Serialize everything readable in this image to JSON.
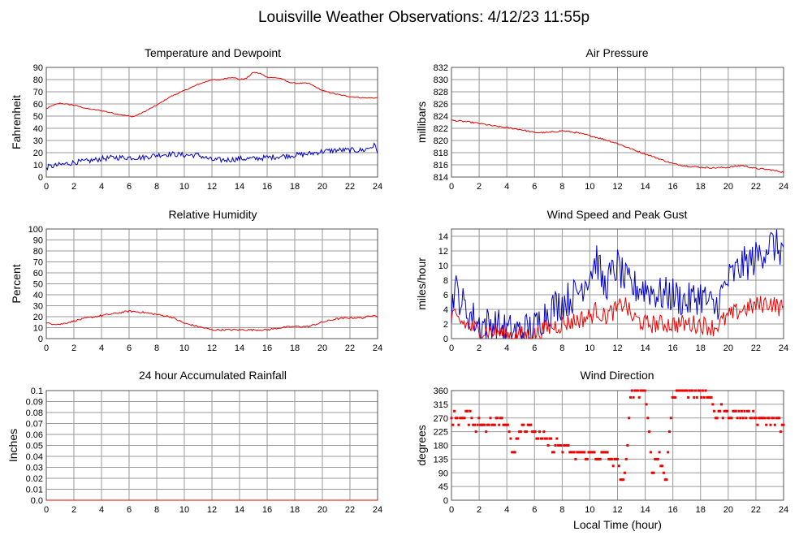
{
  "page_title": "Louisville Weather Observations: 4/12/23 11:55p",
  "colors": {
    "red": "#ee0000",
    "blue": "#0000cc",
    "grid": "#9a9a9a"
  },
  "chart_data": [
    {
      "id": "temp",
      "type": "line",
      "title": "Temperature and Dewpoint",
      "ylabel": "Fahrenheit",
      "xlabel": "",
      "xlim": [
        0,
        24
      ],
      "ylim": [
        0,
        90
      ],
      "x_ticks": [
        0,
        2,
        4,
        6,
        8,
        10,
        12,
        14,
        16,
        18,
        20,
        22,
        24
      ],
      "y_ticks": [
        "0",
        "10",
        "20",
        "30",
        "40",
        "50",
        "60",
        "70",
        "80",
        "90"
      ],
      "series": [
        {
          "color": "#ee0000",
          "noise": 0.4,
          "points": [
            [
              0,
              56
            ],
            [
              0.5,
              59
            ],
            [
              1,
              60.5
            ],
            [
              2,
              59
            ],
            [
              3,
              56
            ],
            [
              4,
              54.5
            ],
            [
              5,
              52
            ],
            [
              6,
              50
            ],
            [
              6.3,
              49.5
            ],
            [
              7,
              53
            ],
            [
              8,
              59
            ],
            [
              9,
              66
            ],
            [
              10,
              71
            ],
            [
              11,
              76
            ],
            [
              12,
              80
            ],
            [
              12.5,
              79.5
            ],
            [
              13,
              81
            ],
            [
              13.5,
              82
            ],
            [
              14,
              80
            ],
            [
              14.5,
              81
            ],
            [
              15,
              86
            ],
            [
              15.5,
              85
            ],
            [
              16,
              82
            ],
            [
              17,
              81
            ],
            [
              17.5,
              78
            ],
            [
              18,
              77
            ],
            [
              19,
              77
            ],
            [
              20,
              71
            ],
            [
              21,
              68
            ],
            [
              22,
              66
            ],
            [
              23,
              65
            ],
            [
              24,
              65
            ]
          ]
        },
        {
          "color": "#0000cc",
          "noise": 2.2,
          "points": [
            [
              0,
              8
            ],
            [
              1,
              10
            ],
            [
              2,
              12
            ],
            [
              3,
              13
            ],
            [
              4,
              15
            ],
            [
              5,
              16
            ],
            [
              6,
              16
            ],
            [
              7,
              16
            ],
            [
              8,
              18
            ],
            [
              9,
              19
            ],
            [
              10,
              18
            ],
            [
              11,
              18
            ],
            [
              12,
              14
            ],
            [
              13,
              14
            ],
            [
              14,
              15
            ],
            [
              15,
              15
            ],
            [
              16,
              16
            ],
            [
              17,
              17
            ],
            [
              18,
              18
            ],
            [
              19,
              19
            ],
            [
              20,
              21
            ],
            [
              21,
              22
            ],
            [
              22,
              22
            ],
            [
              23,
              22
            ],
            [
              23.8,
              26
            ],
            [
              24,
              21
            ]
          ]
        }
      ]
    },
    {
      "id": "pressure",
      "type": "line",
      "title": "Air Pressure",
      "ylabel": "millibars",
      "xlabel": "",
      "xlim": [
        0,
        24
      ],
      "ylim": [
        814,
        832
      ],
      "x_ticks": [
        0,
        2,
        4,
        6,
        8,
        10,
        12,
        14,
        16,
        18,
        20,
        22,
        24
      ],
      "y_ticks": [
        "814",
        "816",
        "818",
        "820",
        "822",
        "824",
        "826",
        "828",
        "830",
        "832"
      ],
      "series": [
        {
          "color": "#ee0000",
          "noise": 0.12,
          "points": [
            [
              0,
              823.3
            ],
            [
              1,
              823.1
            ],
            [
              2,
              822.8
            ],
            [
              3,
              822.4
            ],
            [
              4,
              822.1
            ],
            [
              5,
              821.8
            ],
            [
              6,
              821.3
            ],
            [
              7,
              821.3
            ],
            [
              8,
              821.6
            ],
            [
              9,
              821.3
            ],
            [
              10,
              820.8
            ],
            [
              11,
              820.2
            ],
            [
              12,
              819.5
            ],
            [
              13,
              818.6
            ],
            [
              14,
              817.8
            ],
            [
              15,
              817.0
            ],
            [
              16,
              816.2
            ],
            [
              17,
              815.8
            ],
            [
              18,
              815.6
            ],
            [
              19,
              815.5
            ],
            [
              20,
              815.6
            ],
            [
              21,
              815.9
            ],
            [
              22,
              815.4
            ],
            [
              23,
              815.2
            ],
            [
              24,
              814.8
            ]
          ]
        }
      ]
    },
    {
      "id": "humidity",
      "type": "line",
      "title": "Relative Humidity",
      "ylabel": "Percent",
      "xlabel": "",
      "xlim": [
        0,
        24
      ],
      "ylim": [
        0,
        100
      ],
      "x_ticks": [
        0,
        2,
        4,
        6,
        8,
        10,
        12,
        14,
        16,
        18,
        20,
        22,
        24
      ],
      "y_ticks": [
        "0",
        "10",
        "20",
        "30",
        "40",
        "50",
        "60",
        "70",
        "80",
        "90",
        "100"
      ],
      "series": [
        {
          "color": "#ee0000",
          "noise": 0.8,
          "points": [
            [
              0,
              14
            ],
            [
              1,
              13
            ],
            [
              2,
              16
            ],
            [
              3,
              19
            ],
            [
              4,
              21
            ],
            [
              5,
              23
            ],
            [
              6,
              25
            ],
            [
              7,
              24
            ],
            [
              8,
              22
            ],
            [
              9,
              20
            ],
            [
              10,
              14
            ],
            [
              11,
              11
            ],
            [
              12,
              8
            ],
            [
              13,
              8
            ],
            [
              14,
              8
            ],
            [
              15,
              8
            ],
            [
              16,
              8
            ],
            [
              17,
              10
            ],
            [
              18,
              11
            ],
            [
              19,
              11
            ],
            [
              20,
              15
            ],
            [
              21,
              18
            ],
            [
              22,
              19
            ],
            [
              23,
              19
            ],
            [
              23.8,
              22
            ],
            [
              24,
              19
            ]
          ]
        }
      ]
    },
    {
      "id": "wind",
      "type": "line",
      "title": "Wind Speed and Peak Gust",
      "ylabel": "miles/hour",
      "xlabel": "",
      "xlim": [
        0,
        24
      ],
      "ylim": [
        0,
        15
      ],
      "x_ticks": [
        0,
        2,
        4,
        6,
        8,
        10,
        12,
        14,
        16,
        18,
        20,
        22,
        24
      ],
      "y_ticks": [
        "0",
        "2",
        "4",
        "6",
        "8",
        "10",
        "12",
        "14"
      ],
      "series": [
        {
          "color": "#0000cc",
          "noise": 2.5,
          "points": [
            [
              0,
              4
            ],
            [
              0.2,
              7
            ],
            [
              0.5,
              6
            ],
            [
              1,
              4
            ],
            [
              2,
              2
            ],
            [
              3,
              2
            ],
            [
              4,
              1
            ],
            [
              5,
              1
            ],
            [
              6,
              1.5
            ],
            [
              7,
              4
            ],
            [
              8,
              5
            ],
            [
              9,
              6
            ],
            [
              10,
              9
            ],
            [
              10.5,
              11
            ],
            [
              11,
              7
            ],
            [
              12,
              10
            ],
            [
              12.5,
              8
            ],
            [
              13,
              7
            ],
            [
              14,
              7
            ],
            [
              15,
              6
            ],
            [
              16,
              6
            ],
            [
              17,
              5
            ],
            [
              18,
              6
            ],
            [
              19,
              4
            ],
            [
              20,
              8
            ],
            [
              21,
              10
            ],
            [
              22,
              11
            ],
            [
              23,
              13
            ],
            [
              24,
              12
            ]
          ]
        },
        {
          "color": "#ee0000",
          "noise": 1.3,
          "points": [
            [
              0,
              3
            ],
            [
              1,
              2
            ],
            [
              2,
              1
            ],
            [
              3,
              1
            ],
            [
              4,
              0.5
            ],
            [
              5,
              0.5
            ],
            [
              6,
              0.5
            ],
            [
              7,
              1.5
            ],
            [
              8,
              2
            ],
            [
              9,
              2.5
            ],
            [
              10,
              3
            ],
            [
              10.5,
              4
            ],
            [
              11,
              3
            ],
            [
              12,
              4
            ],
            [
              12.5,
              5
            ],
            [
              13,
              3
            ],
            [
              14,
              2
            ],
            [
              15,
              2
            ],
            [
              16,
              2
            ],
            [
              17,
              2
            ],
            [
              18,
              2
            ],
            [
              19,
              1.5
            ],
            [
              20,
              3
            ],
            [
              21,
              4
            ],
            [
              22,
              4.5
            ],
            [
              23,
              5
            ],
            [
              24,
              4
            ]
          ]
        }
      ]
    },
    {
      "id": "rain",
      "type": "line",
      "title": "24 hour Accumulated Rainfall",
      "ylabel": "Inches",
      "xlabel": "",
      "xlim": [
        0,
        24
      ],
      "ylim": [
        0,
        0.1
      ],
      "x_ticks": [
        0,
        2,
        4,
        6,
        8,
        10,
        12,
        14,
        16,
        18,
        20,
        22,
        24
      ],
      "y_ticks": [
        "0.0",
        "0.01",
        "0.02",
        "0.03",
        "0.04",
        "0.05",
        "0.06",
        "0.07",
        "0.08",
        "0.09",
        "0.1"
      ],
      "series": [
        {
          "color": "#ee0000",
          "noise": 0,
          "points": [
            [
              0,
              0
            ],
            [
              24,
              0
            ]
          ]
        }
      ]
    },
    {
      "id": "direction",
      "type": "scatter",
      "title": "Wind Direction",
      "ylabel": "degrees",
      "xlabel": "Local Time (hour)",
      "xlim": [
        0,
        24
      ],
      "ylim": [
        0,
        360
      ],
      "x_ticks": [
        0,
        2,
        4,
        6,
        8,
        10,
        12,
        14,
        16,
        18,
        20,
        22,
        24
      ],
      "y_ticks": [
        "0",
        "45",
        "90",
        "135",
        "180",
        "225",
        "270",
        "315",
        "360"
      ],
      "series": [
        {
          "color": "#ee0000",
          "noise": 20,
          "points": [
            [
              0,
              270
            ],
            [
              1,
              270
            ],
            [
              2,
              250
            ],
            [
              3,
              250
            ],
            [
              4,
              270
            ],
            [
              4.5,
              150
            ],
            [
              5,
              250
            ],
            [
              6,
              225
            ],
            [
              7,
              190
            ],
            [
              8,
              170
            ],
            [
              9,
              150
            ],
            [
              10,
              155
            ],
            [
              11,
              150
            ],
            [
              12,
              120
            ],
            [
              12.5,
              50
            ],
            [
              13,
              360
            ],
            [
              14,
              360
            ],
            [
              14.5,
              100
            ],
            [
              15,
              150
            ],
            [
              15.5,
              60
            ],
            [
              16,
              360
            ],
            [
              17,
              360
            ],
            [
              18,
              360
            ],
            [
              18.5,
              340
            ],
            [
              19,
              290
            ],
            [
              20,
              285
            ],
            [
              21,
              285
            ],
            [
              22,
              275
            ],
            [
              23,
              260
            ],
            [
              24,
              250
            ]
          ]
        }
      ]
    }
  ]
}
